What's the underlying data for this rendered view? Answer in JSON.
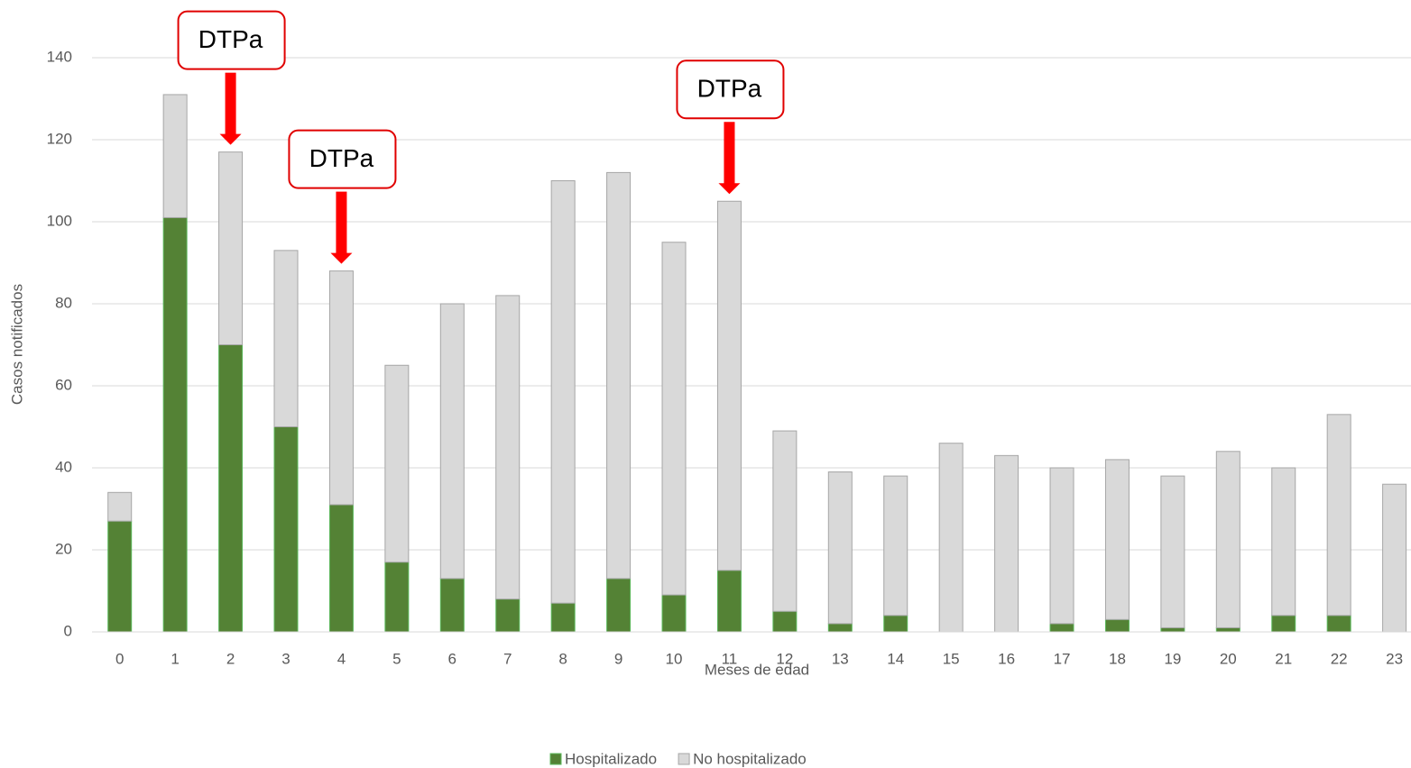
{
  "chart_data": {
    "type": "stacked_bar",
    "y_label": "Casos notificados",
    "x_label": "Meses de edad",
    "categories": [
      "0",
      "1",
      "2",
      "3",
      "4",
      "5",
      "6",
      "7",
      "8",
      "9",
      "10",
      "11",
      "12",
      "13",
      "14",
      "15",
      "16",
      "17",
      "18",
      "19",
      "20",
      "21",
      "22",
      "23"
    ],
    "series": [
      {
        "name": "Hospitalizado",
        "color": "#548235",
        "values": [
          27,
          101,
          70,
          50,
          31,
          17,
          13,
          8,
          7,
          13,
          9,
          15,
          5,
          2,
          4,
          0,
          0,
          2,
          3,
          1,
          1,
          4,
          4,
          0
        ]
      },
      {
        "name": "No hospitalizado",
        "color": "#d9d9d9",
        "values": [
          7,
          30,
          47,
          43,
          57,
          48,
          67,
          74,
          103,
          99,
          86,
          90,
          44,
          37,
          34,
          46,
          43,
          38,
          39,
          37,
          43,
          36,
          49,
          36
        ]
      }
    ],
    "ylim": [
      0,
      140
    ],
    "yticks": [
      0,
      20,
      40,
      60,
      80,
      100,
      120,
      140
    ],
    "grid": true,
    "legend": "bottom",
    "annotations": [
      {
        "text": "DTPa",
        "category": "2"
      },
      {
        "text": "DTPa",
        "category": "4"
      },
      {
        "text": "DTPa",
        "category": "11"
      }
    ]
  }
}
